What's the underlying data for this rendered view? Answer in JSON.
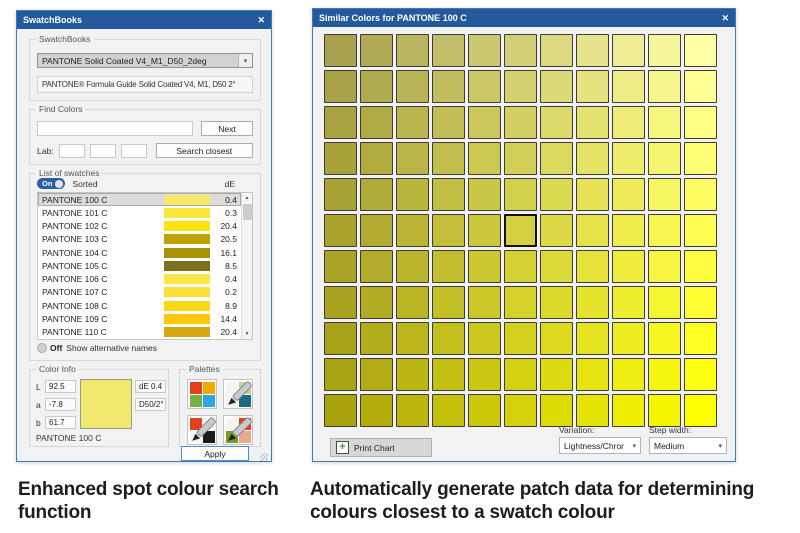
{
  "colors": {
    "titlebar": "#245a9d",
    "dialog_border": "#3e7bb7",
    "dialog_bg": "#f2f2f2",
    "selected_swatch": "#f0e96d",
    "apply_border": "#4a90c8",
    "toggle_on": "#2b5fa6"
  },
  "icons": {
    "close": "✕",
    "up": "▲",
    "down": "▼",
    "dropdown": "▾",
    "plus": "+"
  },
  "left_dialog": {
    "title": "SwatchBooks",
    "swatchbooks_group": {
      "label": "SwatchBooks",
      "selected_book": "PANTONE Solid Coated V4_M1_D50_2deg",
      "description": "PANTONE® Formula Guide Solid Coated V4, M1, D50 2°"
    },
    "find_colors_group": {
      "label": "Find Colors",
      "search_value": "",
      "next_button": "Next",
      "lab_label": "Lab:",
      "lab_values": [
        "",
        "",
        ""
      ],
      "search_closest_button": "Search closest"
    },
    "swatch_list_group": {
      "label": "List of swatches",
      "toggle_on": "On",
      "sorted_label": "Sorted",
      "de_header": "dE",
      "rows": [
        {
          "name": "PANTONE 100 C",
          "color": "#f5e965",
          "de": "0.4",
          "selected": true
        },
        {
          "name": "PANTONE 101 C",
          "color": "#f8e83d",
          "de": "0.3",
          "selected": false
        },
        {
          "name": "PANTONE 102 C",
          "color": "#fee311",
          "de": "20.4",
          "selected": false
        },
        {
          "name": "PANTONE 103 C",
          "color": "#bfa306",
          "de": "20.5",
          "selected": false
        },
        {
          "name": "PANTONE 104 C",
          "color": "#a89104",
          "de": "16.1",
          "selected": false
        },
        {
          "name": "PANTONE 105 C",
          "color": "#7d701d",
          "de": "8.5",
          "selected": false
        },
        {
          "name": "PANTONE 106 C",
          "color": "#f9e64b",
          "de": "0.4",
          "selected": false
        },
        {
          "name": "PANTONE 107 C",
          "color": "#fbe135",
          "de": "0.2",
          "selected": false
        },
        {
          "name": "PANTONE 108 C",
          "color": "#fdd918",
          "de": "8.9",
          "selected": false
        },
        {
          "name": "PANTONE 109 C",
          "color": "#fec60a",
          "de": "14.4",
          "selected": false
        },
        {
          "name": "PANTONE 110 C",
          "color": "#d8a60f",
          "de": "20.4",
          "selected": false
        }
      ],
      "toggle_off": "Off",
      "alt_names_label": "Show alternative names"
    },
    "color_info_group": {
      "label": "Color Info",
      "l_label": "L",
      "l_value": "92.5",
      "a_label": "a",
      "a_value": "-7.8",
      "b_label": "b",
      "b_value": "61.7",
      "de_value": "dE 0.4",
      "illuminant": "D50/2°",
      "swatch_color": "#f0e96d",
      "swatch_name": "PANTONE 100 C"
    },
    "palettes_group": {
      "label": "Palettes",
      "buttons": [
        {
          "name": "palette-swatch-grid-icon",
          "squares": [
            "#e2401c",
            "#f2a900",
            "#76b043",
            "#2aa9dc"
          ],
          "brush": false
        },
        {
          "name": "palette-edit-teal-icon",
          "squares": [
            "#f4f4f4",
            "#b7d98b",
            "#f4f4f4",
            "#1c6a86"
          ],
          "brush": true
        },
        {
          "name": "palette-edit-red-black-icon",
          "squares": [
            "#e2401c",
            "#f4f4f4",
            "#f4f4f4",
            "#1a1a1a"
          ],
          "brush": true
        },
        {
          "name": "palette-edit-autumn-icon",
          "squares": [
            "#f4f4f4",
            "#e2401c",
            "#7a9a28",
            "#eaa88f"
          ],
          "brush": true
        }
      ]
    },
    "apply_button": "Apply"
  },
  "right_dialog": {
    "title": "Similar Colors for PANTONE 100 C",
    "grid": {
      "rows": 11,
      "cols": 11,
      "selected_row": 5,
      "selected_col": 5,
      "colors": [
        [
          "#a8a14d",
          "#b1aa56",
          "#b9b45f",
          "#c2bd68",
          "#cbc771",
          "#d4d07a",
          "#dcd982",
          "#e5e38b",
          "#eeec94",
          "#f6f69d",
          "#ffffa6"
        ],
        [
          "#a8a147",
          "#b1ab4f",
          "#b9b456",
          "#c2bd5e",
          "#cbc766",
          "#d4d06e",
          "#dcda76",
          "#e5e37e",
          "#eeec86",
          "#f6f68e",
          "#ffff95"
        ],
        [
          "#a8a240",
          "#b1ab47",
          "#bab44e",
          "#c2be55",
          "#cbc75c",
          "#d4d063",
          "#dcda69",
          "#e5e370",
          "#eeec77",
          "#f6f67e",
          "#ffff85"
        ],
        [
          "#a8a23a",
          "#b1ab40",
          "#bab546",
          "#c2be4c",
          "#cbc751",
          "#d4d057",
          "#dcda5d",
          "#e5e363",
          "#eeec69",
          "#f6f66e",
          "#ffff74"
        ],
        [
          "#a8a234",
          "#b1ab39",
          "#bab53d",
          "#c2be42",
          "#cbc747",
          "#d4d14c",
          "#dcda51",
          "#e5e355",
          "#eeec5a",
          "#f6f65f",
          "#ffff64"
        ],
        [
          "#a9a32e",
          "#b1ac31",
          "#bab535",
          "#c2be39",
          "#cbc83d",
          "#d4d140",
          "#dcda44",
          "#e5e348",
          "#eeed4c",
          "#f6f64f",
          "#ffff53"
        ],
        [
          "#a9a327",
          "#b1ac2a",
          "#bab52d",
          "#c3be2f",
          "#cbc832",
          "#d4d135",
          "#dcda38",
          "#e5e33a",
          "#eeed3d",
          "#f6f640",
          "#ffff42"
        ],
        [
          "#a9a321",
          "#b1ac23",
          "#bab524",
          "#c3bf26",
          "#cbc828",
          "#d4d129",
          "#dcda2b",
          "#e5e32d",
          "#eeed2e",
          "#f6f630",
          "#ffff32"
        ],
        [
          "#a9a31b",
          "#b1ad1b",
          "#bab61c",
          "#c3bf1d",
          "#cbc81d",
          "#d4d11e",
          "#ddda1f",
          "#e5e41f",
          "#eeed20",
          "#f6f621",
          "#ffff21"
        ],
        [
          "#a9a414",
          "#b2ad14",
          "#bab614",
          "#c3bf13",
          "#cbc813",
          "#d4d112",
          "#dddb12",
          "#e5e412",
          "#eeed11",
          "#f6f611",
          "#ffff11"
        ],
        [
          "#a9a40e",
          "#b2ad0d",
          "#bab60b",
          "#c3bf0a",
          "#cbc808",
          "#d4d207",
          "#dddb06",
          "#e5e404",
          "#eeed03",
          "#f6f601",
          "#ffff00"
        ]
      ]
    },
    "print_chart_button": "Print Chart",
    "variation_label": "Variation:",
    "variation_value": "Lightness/Chror",
    "step_width_label": "Step width:",
    "step_width_value": "Medium"
  },
  "captions": {
    "left": "Enhanced spot colour search function",
    "right": "Automatically generate patch data for determining colours closest to a swatch colour"
  }
}
